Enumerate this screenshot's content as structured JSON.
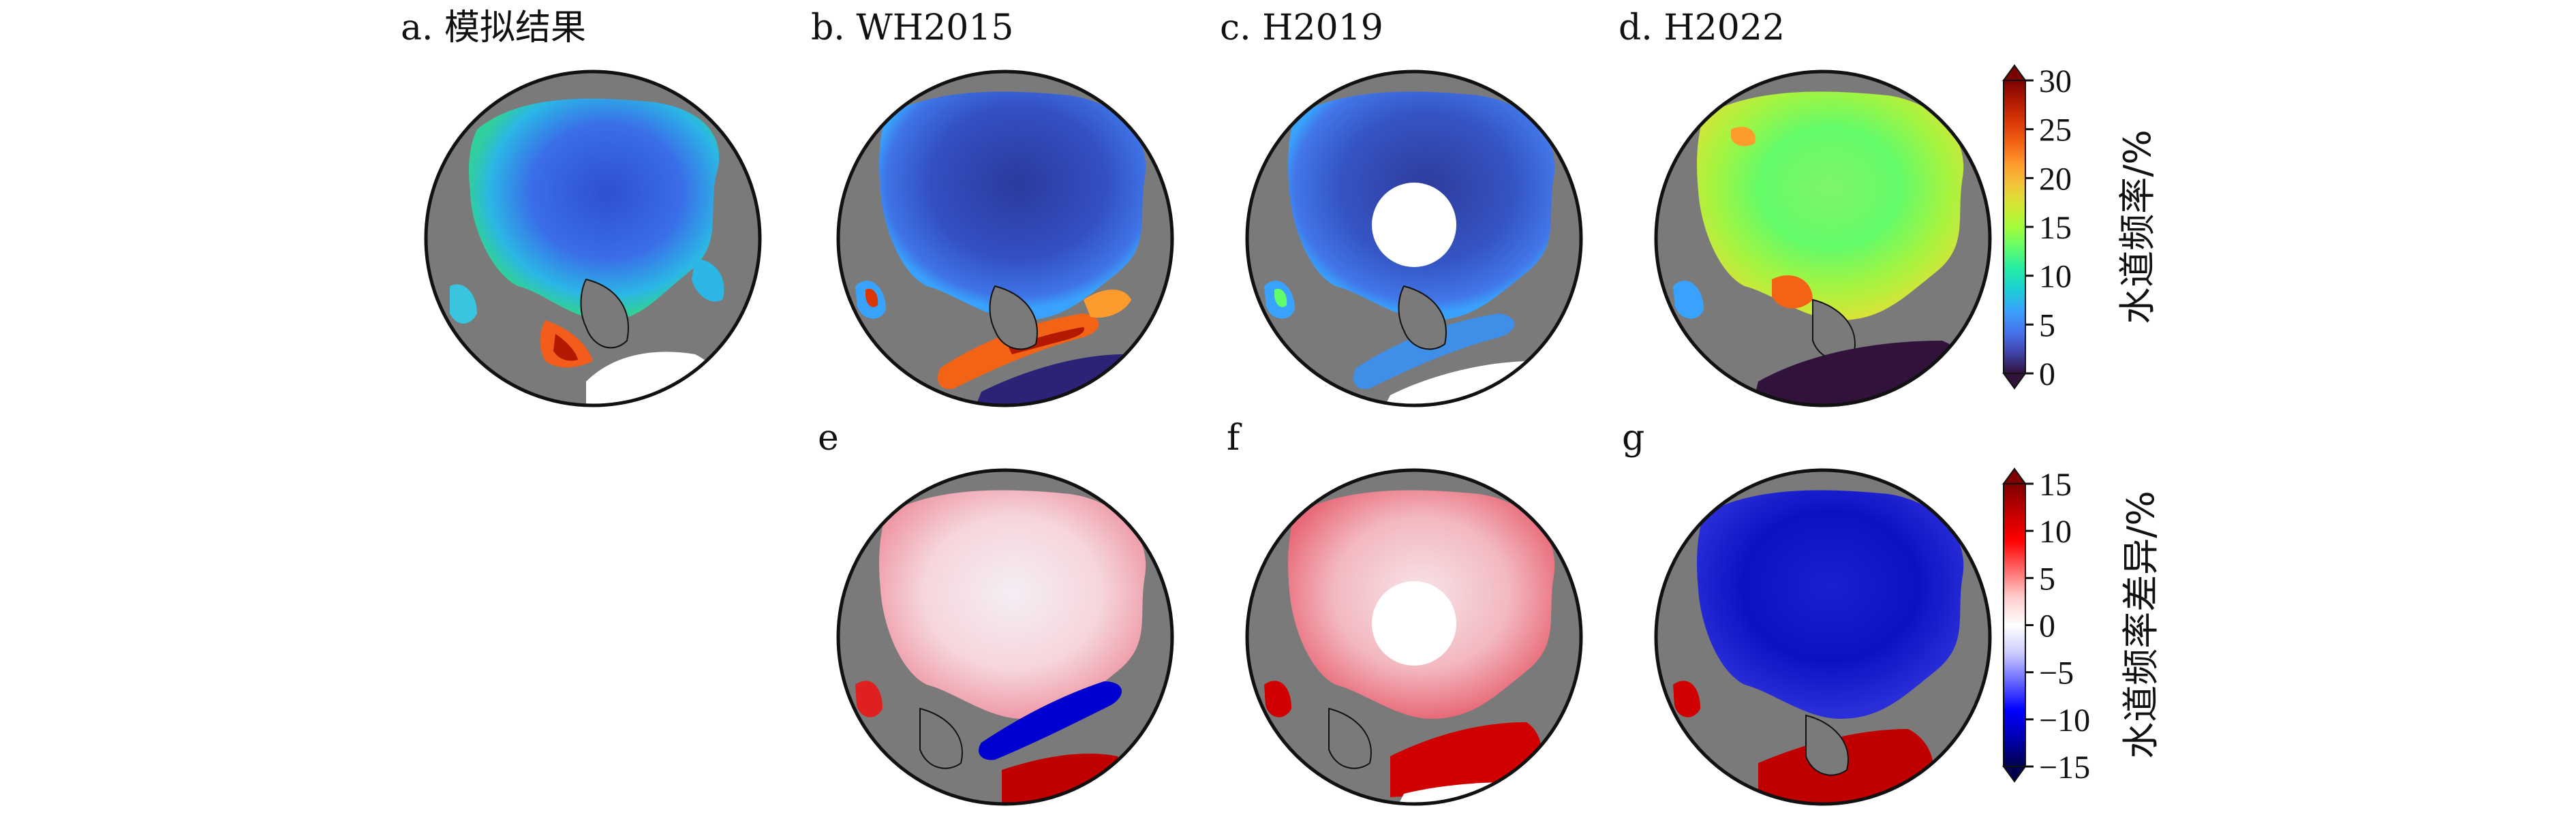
{
  "panels": [
    {
      "label": "a. 模拟结果",
      "type": "frequency"
    },
    {
      "label": "b. WH2015",
      "type": "frequency"
    },
    {
      "label": "c. H2019",
      "type": "frequency",
      "pole_hole": true
    },
    {
      "label": "d. H2022",
      "type": "frequency"
    },
    {
      "label": "e",
      "type": "difference"
    },
    {
      "label": "f",
      "type": "difference",
      "pole_hole": true
    },
    {
      "label": "g",
      "type": "difference"
    }
  ],
  "colorbar_top": {
    "title": "水道频率/%",
    "ticks": [
      "0",
      "5",
      "10",
      "15",
      "20",
      "25",
      "30"
    ],
    "min": 0,
    "max": 30,
    "colors": [
      "#30123b",
      "#4145ab",
      "#4675ed",
      "#39a2fc",
      "#1bcfd4",
      "#24eca6",
      "#61fc6c",
      "#a4fc3b",
      "#d1e834",
      "#f3c63a",
      "#fe9b2d",
      "#f36315",
      "#d93806",
      "#b11901",
      "#7a0402"
    ]
  },
  "colorbar_bottom": {
    "title": "水道频率差异/%",
    "ticks": [
      "−15",
      "−10",
      "−5",
      "0",
      "5",
      "10",
      "15"
    ],
    "min": -15,
    "max": 15,
    "colors": [
      "#00004c",
      "#0000b0",
      "#0000ff",
      "#6666ff",
      "#ccccff",
      "#ffffff",
      "#ffcccc",
      "#ff6666",
      "#ff0000",
      "#c00000",
      "#800000"
    ]
  },
  "colors": {
    "land": "#7a7a7a",
    "ocean_open": "#ffffff",
    "ice_low": "#2c3a99",
    "coast": "#111111"
  }
}
